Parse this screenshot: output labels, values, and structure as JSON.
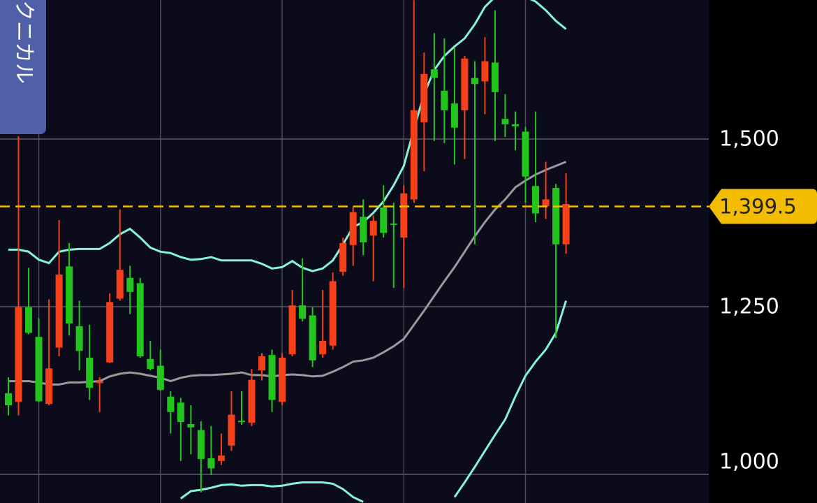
{
  "tab_label": "テクニカル",
  "chart_data": {
    "type": "candlestick",
    "up_color": "#f5401a",
    "down_color": "#22c51c",
    "open": [
      1121,
      1108,
      1249,
      1205,
      1105,
      1189,
      1310,
      1221,
      1174,
      1136,
      1167,
      1262,
      1293,
      1285,
      1172,
      1162,
      1116,
      1107,
      1075,
      1066,
      1024,
      1020,
      1043,
      1080,
      1077,
      1155,
      1178,
      1108,
      1179,
      1252,
      1237,
      1179,
      1192,
      1302,
      1342,
      1384,
      1356,
      1398,
      1374,
      1353,
      1410,
      1525,
      1604,
      1572,
      1553,
      1543,
      1591,
      1586,
      1614,
      1530,
      1522,
      1511,
      1430,
      1400,
      1427,
      1343
    ],
    "high": [
      1145,
      1504,
      1308,
      1233,
      1261,
      1379,
      1345,
      1259,
      1223,
      1145,
      1270,
      1395,
      1311,
      1293,
      1199,
      1186,
      1124,
      1114,
      1103,
      1079,
      1072,
      1061,
      1124,
      1124,
      1157,
      1181,
      1186,
      1181,
      1275,
      1322,
      1249,
      1275,
      1301,
      1353,
      1400,
      1410,
      1386,
      1431,
      1405,
      1431,
      1707,
      1629,
      1658,
      1650,
      1636,
      1624,
      1616,
      1652,
      1692,
      1567,
      1541,
      1518,
      1541,
      1466,
      1433,
      1449
    ],
    "low": [
      1088,
      1088,
      1209,
      1108,
      1103,
      1176,
      1207,
      1155,
      1111,
      1093,
      1166,
      1259,
      1239,
      1174,
      1155,
      1124,
      1061,
      1020,
      1030,
      973,
      999,
      1014,
      1035,
      1074,
      1072,
      1140,
      1093,
      1103,
      1176,
      1228,
      1160,
      1174,
      1186,
      1296,
      1311,
      1327,
      1288,
      1353,
      1278,
      1278,
      1405,
      1452,
      1497,
      1494,
      1462,
      1470,
      1343,
      1537,
      1497,
      1503,
      1483,
      1405,
      1376,
      1381,
      1203,
      1329
    ],
    "close": [
      1103,
      1249,
      1211,
      1109,
      1158,
      1298,
      1225,
      1184,
      1129,
      1139,
      1257,
      1305,
      1272,
      1176,
      1157,
      1126,
      1093,
      1078,
      1070,
      1023,
      1009,
      1028,
      1089,
      1078,
      1141,
      1176,
      1111,
      1174,
      1252,
      1232,
      1170,
      1199,
      1288,
      1345,
      1391,
      1346,
      1378,
      1360,
      1373,
      1419,
      1543,
      1597,
      1591,
      1543,
      1517,
      1620,
      1582,
      1616,
      1570,
      1522,
      1519,
      1444,
      1389,
      1410,
      1343,
      1403
    ],
    "bands": [
      {
        "color": "#9a9a9a",
        "values": [
          1139,
          1139,
          1139,
          1137,
          1134,
          1134,
          1137,
          1137,
          1138,
          1139,
          1146,
          1150,
          1152,
          1150,
          1147,
          1144,
          1139,
          1144,
          1147,
          1148,
          1148,
          1149,
          1150,
          1152,
          1148,
          1148,
          1146,
          1148,
          1149,
          1148,
          1146,
          1147,
          1153,
          1160,
          1168,
          1170,
          1174,
          1182,
          1191,
          1202,
          1223,
          1244,
          1266,
          1288,
          1309,
          1332,
          1355,
          1376,
          1395,
          1410,
          1428,
          1438,
          1447,
          1454,
          1460,
          1466
        ]
      },
      {
        "color": "#86f2d6",
        "values": [
          1335,
          1335,
          1332,
          1320,
          1315,
          1332,
          1335,
          1336,
          1336,
          1336,
          1345,
          1358,
          1366,
          1353,
          1338,
          1332,
          1330,
          1324,
          1320,
          1321,
          1324,
          1319,
          1319,
          1319,
          1319,
          1314,
          1307,
          1309,
          1318,
          1308,
          1303,
          1307,
          1319,
          1343,
          1369,
          1376,
          1390,
          1407,
          1431,
          1460,
          1515,
          1567,
          1603,
          1624,
          1638,
          1650,
          1671,
          1697,
          1712,
          1718,
          1718,
          1712,
          1705,
          1692,
          1676,
          1664
        ]
      },
      {
        "color": "#86f2d6",
        "values": [
          null,
          null,
          null,
          null,
          null,
          null,
          null,
          null,
          null,
          null,
          null,
          null,
          null,
          null,
          null,
          null,
          null,
          964,
          975,
          977,
          980,
          984,
          985,
          983,
          984,
          984,
          982,
          983,
          986,
          988,
          988,
          988,
          986,
          978,
          966,
          959,
          null,
          null,
          null,
          null,
          null,
          null,
          null,
          null,
          966,
          988,
          1011,
          1035,
          1059,
          1082,
          1116,
          1147,
          1168,
          1186,
          1211,
          1259
        ]
      }
    ],
    "ylim": [
      957.3,
      1707.3
    ],
    "yticks": [
      {
        "value": 1000,
        "label": "1,000"
      },
      {
        "value": 1250,
        "label": "1,250"
      },
      {
        "value": 1500,
        "label": "1,500"
      }
    ],
    "grid": true,
    "current_price": {
      "value": 1399.5,
      "label": "1,399.5",
      "color": "#f2bd00"
    }
  }
}
